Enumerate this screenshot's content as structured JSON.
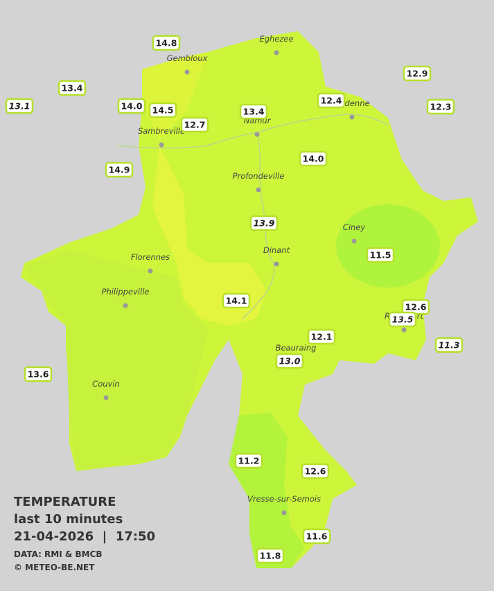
{
  "legend": {
    "title": "TEMPERATURE",
    "subtitle": "last 10 minutes",
    "datetime": "21-04-2026  |  17:50",
    "source": "DATA: RMI & BMCB",
    "credits": "© METEO-BE.NET"
  },
  "towns": [
    "Eghezee",
    "Gembloux",
    "Andenne",
    "Namur",
    "Sambreville",
    "Profondeville",
    "Ciney",
    "Florennes",
    "Dinant",
    "Philippeville",
    "Rochefort",
    "Beauraing",
    "Couvin",
    "Vresse-sur-Semois"
  ],
  "stations": [
    "14.8",
    "13.4",
    "13.1",
    "14.0",
    "14.5",
    "12.7",
    "13.4",
    "12.4",
    "12.9",
    "12.3",
    "14.0",
    "14.9",
    "13.9",
    "11.5",
    "14.1",
    "12.6",
    "13.5",
    "12.1",
    "11.3",
    "13.0",
    "13.6",
    "11.2",
    "12.6",
    "11.6",
    "11.8"
  ]
}
